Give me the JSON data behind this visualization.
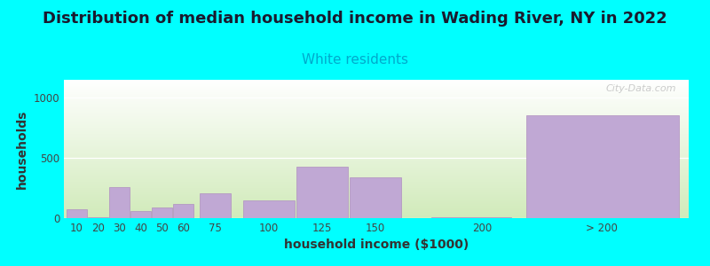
{
  "title": "Distribution of median household income in Wading River, NY in 2022",
  "subtitle": "White residents",
  "xlabel": "household income ($1000)",
  "ylabel": "households",
  "background_color": "#00FFFF",
  "bar_color": "#C0A8D4",
  "bar_edgecolor": "#B090C0",
  "title_fontsize": 13,
  "subtitle_fontsize": 11,
  "subtitle_color": "#00AACC",
  "categories": [
    "10",
    "20",
    "30",
    "40",
    "50",
    "60",
    "75",
    "100",
    "125",
    "150",
    "200",
    "> 200"
  ],
  "values": [
    75,
    10,
    255,
    60,
    88,
    118,
    205,
    148,
    430,
    340,
    10,
    855
  ],
  "bar_lefts": [
    5,
    15,
    25,
    35,
    45,
    55,
    67,
    87,
    112,
    137,
    175,
    218
  ],
  "bar_rights": [
    15,
    25,
    35,
    45,
    55,
    65,
    83,
    113,
    138,
    163,
    215,
    295
  ],
  "tick_positions": [
    10,
    20,
    30,
    40,
    50,
    60,
    75,
    100,
    125,
    150,
    200,
    256
  ],
  "ylim": [
    0,
    1150
  ],
  "yticks": [
    0,
    500,
    1000
  ],
  "xlim": [
    4,
    297
  ],
  "watermark": "City-Data.com"
}
